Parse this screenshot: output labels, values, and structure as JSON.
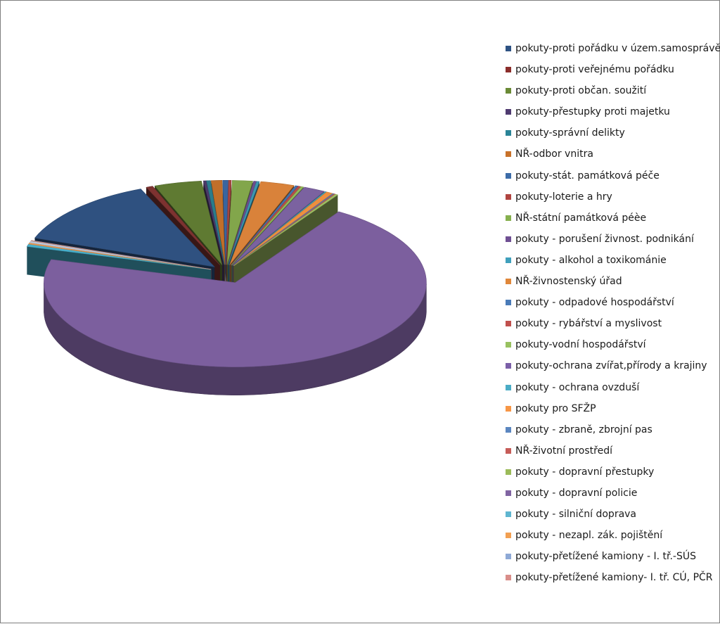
{
  "chart_data": {
    "type": "pie",
    "style": "3d-exploded",
    "legend_position": "right",
    "categories": [
      "pokuty-proti pořádku v územ.samosprávě",
      "pokuty-proti veřejnému pořádku",
      "pokuty-proti občan. soužití",
      "pokuty-přestupky proti majetku",
      "pokuty-správní delikty",
      "NŘ-odbor vnitra",
      "pokuty-stát. památková péče",
      "pokuty-loterie a hry",
      "NŘ-státní památková péèe",
      "pokuty - porušení živnost. podnikání",
      "pokuty - alkohol a toxikománie",
      "NŘ-živnostenský úřad",
      "pokuty - odpadové hospodářství",
      "pokuty - rybářství a myslivost",
      "pokuty-vodní hospodářství",
      "pokuty-ochrana zvířat,přírody a krajiny",
      "pokuty - ochrana ovzduší",
      "pokuty pro SFŽP",
      "pokuty - zbraně, zbrojní pas",
      "NŘ-životní prostředí",
      "pokuty - dopravní přestupky",
      "pokuty - dopravní policie",
      "pokuty - silniční doprava",
      "pokuty - nezapl. zák. pojištění",
      "pokuty-přetížené kamiony - I. tř.-SÚS",
      "pokuty-přetížené kamiony- I. tř. CÚ, PČR"
    ],
    "values": [
      11.5,
      0.5,
      3.5,
      0.2,
      0.3,
      0.8,
      0.4,
      0.2,
      1.5,
      0.2,
      0.2,
      2.5,
      0.2,
      0.2,
      0.2,
      1.6,
      0.1,
      0.5,
      0.1,
      0.1,
      0.2,
      61.5,
      0.4,
      0.2,
      0.3,
      0.1
    ],
    "colors": [
      "#2E5283",
      "#8B2E2B",
      "#6A8A35",
      "#4F3B70",
      "#2A8497",
      "#C8722A",
      "#3C6CA8",
      "#B04440",
      "#86B04E",
      "#6F4F93",
      "#3FA0BC",
      "#E0873A",
      "#4A7BB8",
      "#C0504D",
      "#98C160",
      "#7B5FA8",
      "#4BACC6",
      "#F79646",
      "#5B86C0",
      "#C65C58",
      "#9BBB59",
      "#8064A2",
      "#5FB6D0",
      "#F2A052",
      "#8EA9D6",
      "#D98E8A"
    ],
    "pie_colors": [
      "#2F5180",
      "#7D3230",
      "#5F7A32",
      "#4B3969",
      "#2B7C8C",
      "#C16F2A",
      "#3A659F",
      "#A84642",
      "#82A64B",
      "#6A4E8D",
      "#3C97B1",
      "#D9823A",
      "#4472AC",
      "#B94C48",
      "#92B85A",
      "#7B62A0",
      "#3FA6BE",
      "#EE8F3F",
      "#5B84BC",
      "#C55C58",
      "#A0C064",
      "#7C5F9E",
      "#48AFCB",
      "#F39A4E",
      "#BFCBDE",
      "#D5A09D"
    ]
  }
}
